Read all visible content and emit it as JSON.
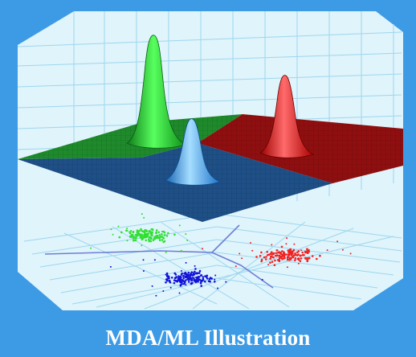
{
  "caption": "MDA/ML Illustration",
  "colors": {
    "background": "#3d9be6",
    "panel": "#dff4fb",
    "grid": "#9fd6ee",
    "plane_green": "#1f8a2c",
    "plane_red": "#8f0f10",
    "plane_blue": "#1e4f86",
    "peak_green": "#22d832",
    "peak_red": "#ea1717",
    "peak_blue": "#2f9ce8",
    "scatter_green": "#2fe02f",
    "scatter_blue": "#1212d8",
    "scatter_red": "#f22222",
    "boundary": "#6f7fd8"
  },
  "scene": {
    "surface_regions": [
      "green",
      "red",
      "blue"
    ],
    "peaks": [
      "green",
      "blue",
      "red"
    ],
    "clusters": [
      "green",
      "blue",
      "red"
    ]
  }
}
